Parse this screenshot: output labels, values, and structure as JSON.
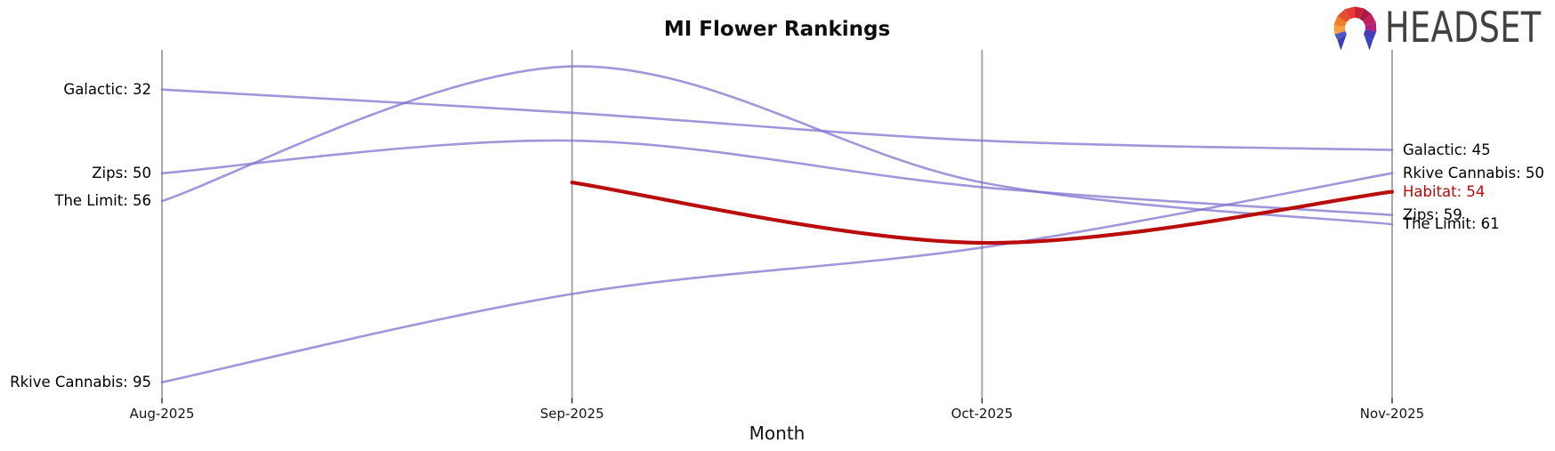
{
  "page": {
    "background": "#ffffff"
  },
  "header": {
    "logo_text": "HEADSET",
    "logo_text_color": "#414042",
    "logo_mark_colors": [
      "#4f58cd",
      "#f6a03d",
      "#f07c27",
      "#e04e31",
      "#e63a35",
      "#c92138",
      "#aa1a42",
      "#c41e5f",
      "#ad2176",
      "#4639bb"
    ],
    "logo_spike_colors": [
      "#3a3fb0",
      "#3a46c0"
    ]
  },
  "chart_data": {
    "type": "line",
    "subtype": "bump-ranking-parallel-coordinates",
    "title": "MI Flower Rankings",
    "xlabel": "Month",
    "x": [
      "Aug-2025",
      "Sep-2025",
      "Oct-2025",
      "Nov-2025"
    ],
    "y_axis": {
      "inverted": true,
      "approx_visible_range": [
        23,
        98
      ],
      "scale_hidden": true
    },
    "grid": false,
    "legend_position": "inline-end-labels",
    "series": [
      {
        "name": "Galactic",
        "values": [
          32,
          37,
          43,
          45
        ],
        "color": "#7e6ecd",
        "opacity": 0.72,
        "emphasis": false
      },
      {
        "name": "Zips",
        "values": [
          50,
          43,
          53,
          59
        ],
        "color": "#7e6ecd",
        "opacity": 0.72,
        "emphasis": false
      },
      {
        "name": "The Limit",
        "values": [
          56,
          27,
          52,
          61
        ],
        "color": "#7e6ecd",
        "opacity": 0.72,
        "emphasis": false
      },
      {
        "name": "Rkive Cannabis",
        "values": [
          95,
          76,
          66,
          50
        ],
        "color": "#7e6ecd",
        "opacity": 0.72,
        "emphasis": false
      },
      {
        "name": "Habitat",
        "values": [
          null,
          52,
          65,
          54
        ],
        "color": "#b90c0c",
        "opacity": 1,
        "emphasis": true
      }
    ],
    "left_labels": [
      {
        "text": "Galactic: 32",
        "value": 32,
        "color": "#000000"
      },
      {
        "text": "Zips: 50",
        "value": 50,
        "color": "#000000"
      },
      {
        "text": "The Limit: 56",
        "value": 56,
        "color": "#000000"
      },
      {
        "text": "Rkive Cannabis: 95",
        "value": 95,
        "color": "#000000"
      }
    ],
    "right_labels": [
      {
        "text": "Galactic: 45",
        "value": 45,
        "color": "#000000"
      },
      {
        "text": "Rkive Cannabis: 50",
        "value": 50,
        "color": "#000000"
      },
      {
        "text": "Habitat: 54",
        "value": 54,
        "color": "#b90c0c"
      },
      {
        "text": "Zips: 59",
        "value": 59,
        "color": "#000000"
      },
      {
        "text": "The Limit: 61",
        "value": 61,
        "color": "#000000"
      }
    ],
    "axis_color": "#a9a9a9",
    "tick_color": "#1a1a1a"
  }
}
